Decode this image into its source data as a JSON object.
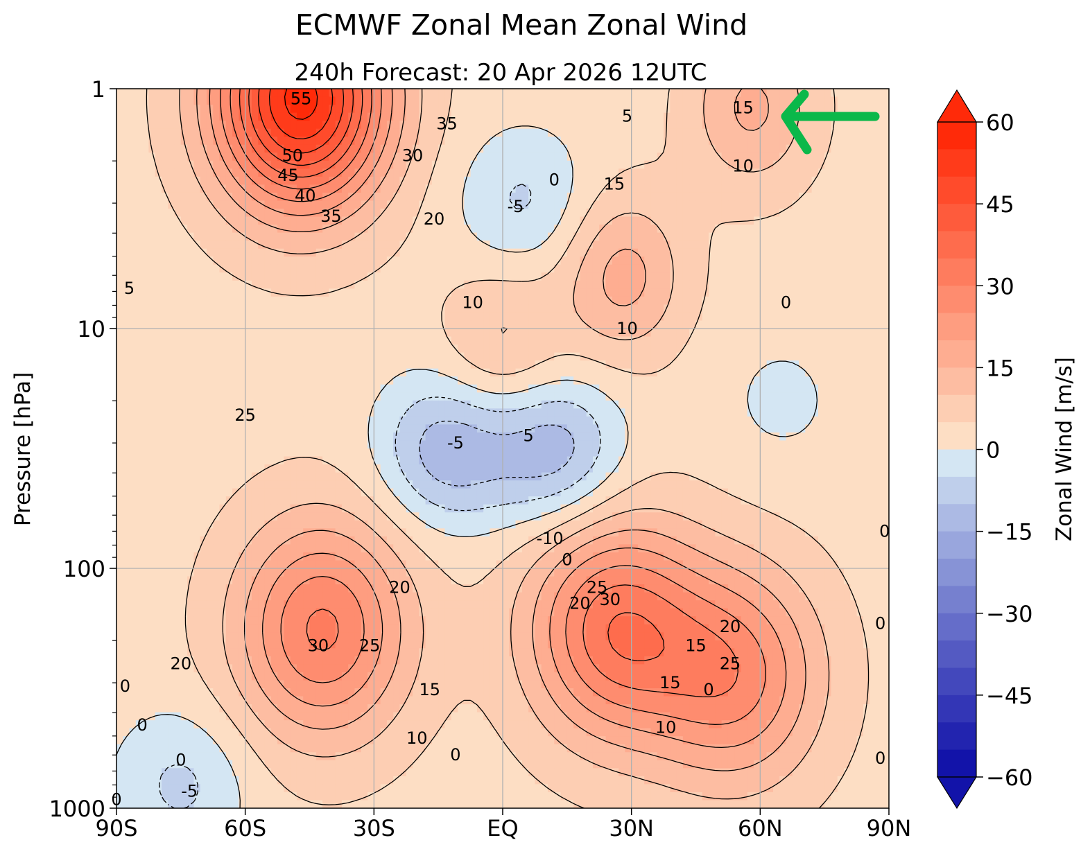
{
  "chart_data": {
    "type": "contour",
    "title": "ECMWF Zonal Mean Zonal Wind",
    "subtitle": "240h  Forecast:  20 Apr 2026  12UTC",
    "ylabel": "Pressure [hPa]",
    "colorbar_label": "Zonal Wind [m/s]",
    "x_ticks": [
      "90S",
      "60S",
      "30S",
      "EQ",
      "30N",
      "60N",
      "90N"
    ],
    "x_tick_values": [
      -90,
      -60,
      -30,
      0,
      30,
      60,
      90
    ],
    "y_ticks": [
      "1",
      "10",
      "100",
      "1000"
    ],
    "y_tick_values": [
      1,
      10,
      100,
      1000
    ],
    "y_scale": "log",
    "y_inverted": true,
    "xlim": [
      -90,
      90
    ],
    "ylim": [
      1000,
      1
    ],
    "grid": true,
    "colorbar_ticks": [
      "60",
      "45",
      "30",
      "15",
      "0",
      "−15",
      "−30",
      "−45",
      "−60"
    ],
    "colorbar_tick_values": [
      60,
      45,
      30,
      15,
      0,
      -15,
      -30,
      -45,
      -60
    ],
    "color_range": [
      -60,
      60
    ],
    "color_step": 5,
    "colormap": "blue-white-red",
    "colors": {
      "negative_max": "#0a0aa6",
      "zero": "#e0f3f8",
      "positive_zero": "#fde6cc",
      "positive_max": "#ff2200",
      "arrow": "#0bb84a"
    },
    "features": [
      {
        "kind": "max",
        "lat": -47,
        "p": 1.1,
        "value": 57
      },
      {
        "kind": "max",
        "lat": -42,
        "p": 180,
        "value": 31
      },
      {
        "kind": "max",
        "lat": 26,
        "p": 180,
        "value": 33
      },
      {
        "kind": "max",
        "lat": 54,
        "p": 280,
        "value": 27
      },
      {
        "kind": "max",
        "lat": 28,
        "p": 6,
        "value": 17
      },
      {
        "kind": "max",
        "lat": 0,
        "p": 12,
        "value": 12
      },
      {
        "kind": "max",
        "lat": 58,
        "p": 1.2,
        "value": 16
      },
      {
        "kind": "min",
        "lat": -13,
        "p": 32,
        "value": -13
      },
      {
        "kind": "min",
        "lat": 12,
        "p": 32,
        "value": -13
      },
      {
        "kind": "min",
        "lat": 5,
        "p": 3,
        "value": -6
      },
      {
        "kind": "min",
        "lat": 65,
        "p": 20,
        "value": -1
      },
      {
        "kind": "min",
        "lat": -75,
        "p": 800,
        "value": -6
      }
    ],
    "contour_labels": [
      {
        "text": "55",
        "lat": -47,
        "p": 1.1
      },
      {
        "text": "50",
        "lat": -49,
        "p": 1.9
      },
      {
        "text": "45",
        "lat": -50,
        "p": 2.3
      },
      {
        "text": "40",
        "lat": -46,
        "p": 2.8
      },
      {
        "text": "35",
        "lat": -40,
        "p": 3.4
      },
      {
        "text": "35",
        "lat": -13,
        "p": 1.4
      },
      {
        "text": "30",
        "lat": -21,
        "p": 1.9
      },
      {
        "text": "20",
        "lat": -16,
        "p": 3.5
      },
      {
        "text": "5",
        "lat": -87,
        "p": 6.8
      },
      {
        "text": "25",
        "lat": -60,
        "p": 23
      },
      {
        "text": "0",
        "lat": 12,
        "p": 2.4
      },
      {
        "text": "-5",
        "lat": 3,
        "p": 3.1
      },
      {
        "text": "15",
        "lat": 26,
        "p": 2.5
      },
      {
        "text": "5",
        "lat": 29,
        "p": 1.3
      },
      {
        "text": "15",
        "lat": 56,
        "p": 1.2
      },
      {
        "text": "10",
        "lat": 56,
        "p": 2.1
      },
      {
        "text": "0",
        "lat": 66,
        "p": 7.8
      },
      {
        "text": "10",
        "lat": -7,
        "p": 7.8
      },
      {
        "text": "10",
        "lat": 29,
        "p": 10
      },
      {
        "text": "5",
        "lat": 6,
        "p": 28
      },
      {
        "text": "-5",
        "lat": -11,
        "p": 30
      },
      {
        "text": "-10",
        "lat": 11,
        "p": 75
      },
      {
        "text": "0",
        "lat": 15,
        "p": 92
      },
      {
        "text": "20",
        "lat": -24,
        "p": 120
      },
      {
        "text": "25",
        "lat": -31,
        "p": 210
      },
      {
        "text": "30",
        "lat": -43,
        "p": 210
      },
      {
        "text": "20",
        "lat": -75,
        "p": 250
      },
      {
        "text": "15",
        "lat": -17,
        "p": 320
      },
      {
        "text": "10",
        "lat": -20,
        "p": 510
      },
      {
        "text": "0",
        "lat": -11,
        "p": 600
      },
      {
        "text": "25",
        "lat": 22,
        "p": 120
      },
      {
        "text": "30",
        "lat": 25,
        "p": 135
      },
      {
        "text": "20",
        "lat": 18,
        "p": 140
      },
      {
        "text": "15",
        "lat": 45,
        "p": 210
      },
      {
        "text": "20",
        "lat": 53,
        "p": 175
      },
      {
        "text": "25",
        "lat": 53,
        "p": 250
      },
      {
        "text": "15",
        "lat": 39,
        "p": 300
      },
      {
        "text": "10",
        "lat": 38,
        "p": 460
      },
      {
        "text": "0",
        "lat": 48,
        "p": 320
      },
      {
        "text": "0",
        "lat": 89,
        "p": 70
      },
      {
        "text": "0",
        "lat": 88,
        "p": 170
      },
      {
        "text": "0",
        "lat": 88,
        "p": 620
      },
      {
        "text": "0",
        "lat": -88,
        "p": 310
      },
      {
        "text": "0",
        "lat": -84,
        "p": 450
      },
      {
        "text": "0",
        "lat": -75,
        "p": 630
      },
      {
        "text": "-5",
        "lat": -73,
        "p": 850
      },
      {
        "text": "0",
        "lat": -90,
        "p": 920
      }
    ],
    "annotation": {
      "kind": "arrow",
      "direction": "left",
      "color": "green"
    }
  }
}
